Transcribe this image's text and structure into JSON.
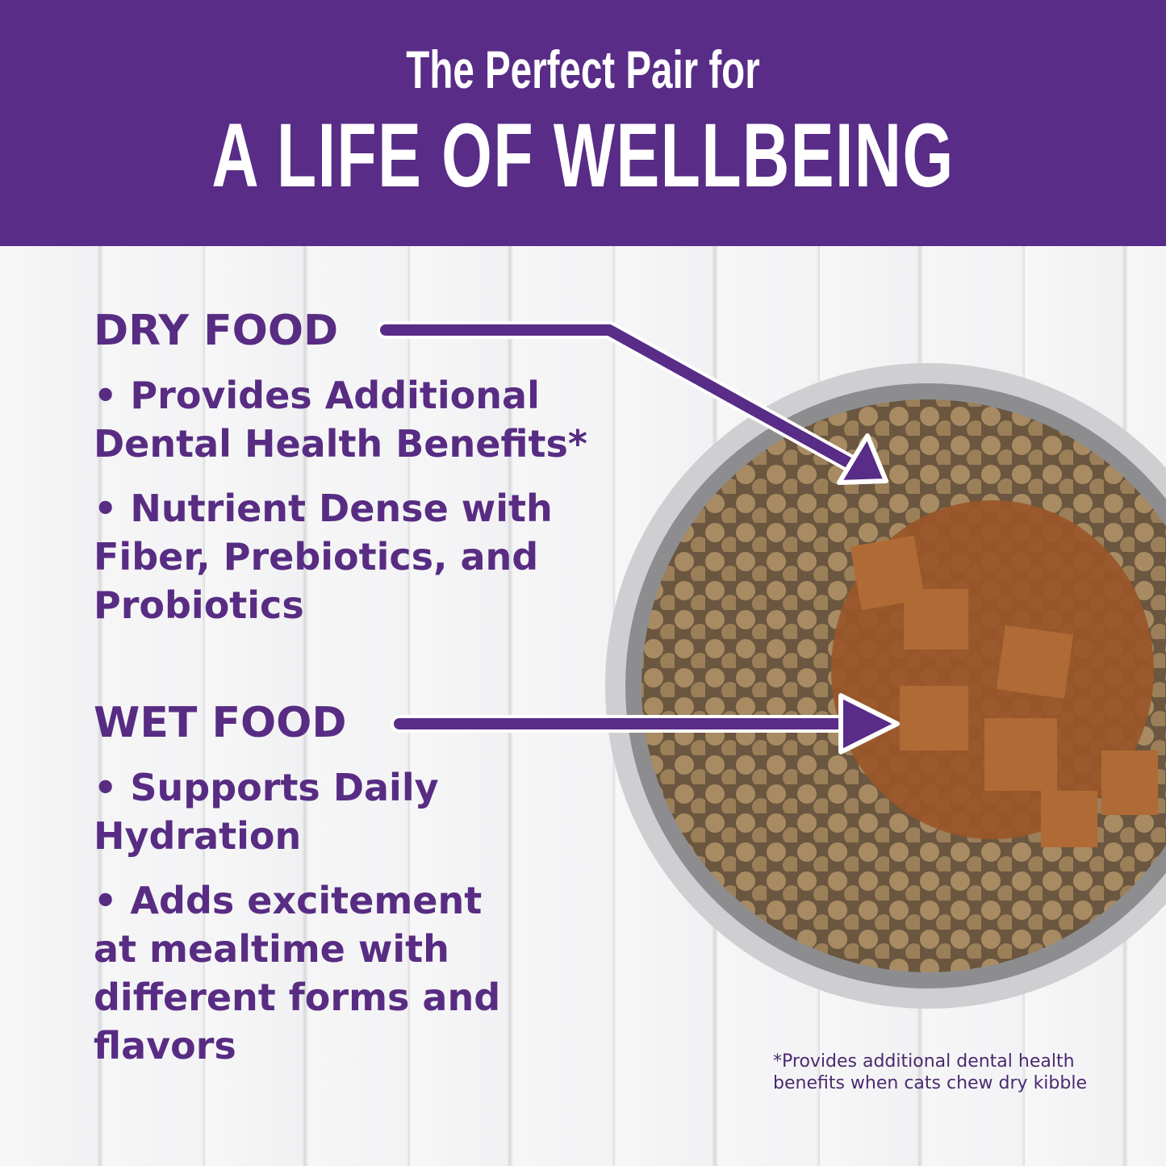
{
  "header": {
    "line1": "The Perfect Pair for",
    "line2": "A LIFE OF WELLBEING"
  },
  "dry": {
    "title": "DRY FOOD",
    "items": [
      "• Provides Additional Dental Health Benefits*",
      "• Nutrient Dense with Fiber, Prebiotics, and Probiotics"
    ]
  },
  "wet": {
    "title": "WET FOOD",
    "items": [
      "• Supports Daily Hydration",
      "• Adds excitement at mealtime with different forms and flavors"
    ]
  },
  "footnote": {
    "line1": "*Provides additional dental health",
    "line2": "benefits when cats chew dry kibble"
  },
  "colors": {
    "brand_purple": "#582c87",
    "background": "#f4f4f5"
  }
}
